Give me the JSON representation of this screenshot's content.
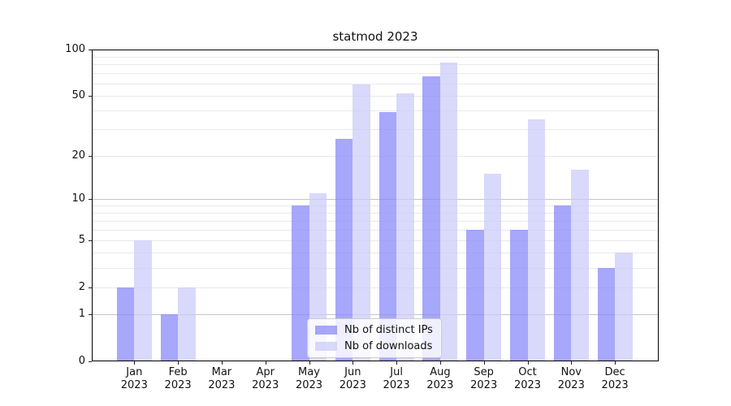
{
  "chart_data": {
    "type": "bar",
    "title": "statmod 2023",
    "x_categories": [
      "Jan",
      "Feb",
      "Mar",
      "Apr",
      "May",
      "Jun",
      "Jul",
      "Aug",
      "Sep",
      "Oct",
      "Nov",
      "Dec"
    ],
    "x_year_label": "2023",
    "series": [
      {
        "name": "Nb of distinct IPs",
        "color": "rgba(138,138,250,0.75)",
        "values": [
          2,
          1,
          0,
          0,
          9,
          26,
          39,
          67,
          6,
          6,
          9,
          3
        ]
      },
      {
        "name": "Nb of downloads",
        "color": "rgba(203,203,250,0.72)",
        "values": [
          5,
          2,
          0,
          0,
          11,
          59,
          52,
          82,
          15,
          35,
          16,
          4
        ]
      }
    ],
    "y_axis": {
      "scale": "log1p",
      "min": 0,
      "max": 100,
      "tick_labels": [
        0,
        1,
        2,
        5,
        10,
        20,
        50,
        100
      ],
      "minor_gridlines": [
        2,
        3,
        4,
        5,
        6,
        7,
        8,
        9,
        20,
        30,
        40,
        50,
        60,
        70,
        80,
        90
      ],
      "major_gridlines": [
        1,
        10
      ]
    },
    "legend": {
      "position": "lower center",
      "entries": [
        "Nb of distinct IPs",
        "Nb of downloads"
      ]
    },
    "colors": {
      "minor_grid": "#e9e9e9",
      "major_grid": "#c4c4c4",
      "spine": "#000000"
    }
  }
}
